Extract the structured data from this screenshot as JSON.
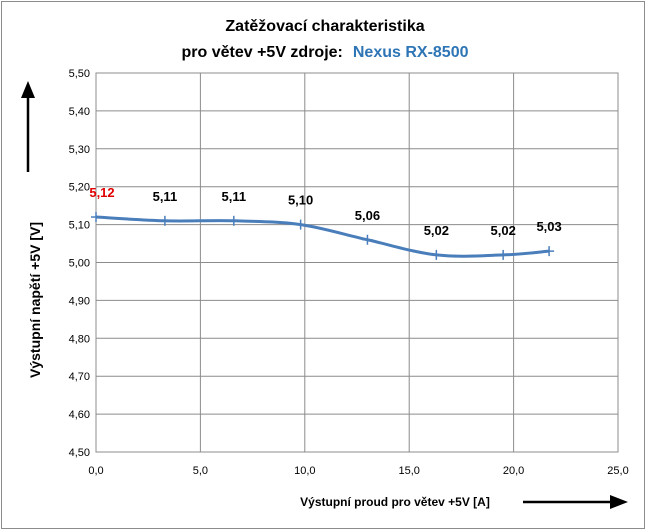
{
  "chart_data": {
    "type": "line",
    "title_line1": "Zatěžovací charakteristika",
    "title_line2_prefix": "pro větev +5V zdroje:",
    "title_line2_product": "Nexus RX-8500",
    "xlabel": "Výstupní proud  pro větev +5V [A]",
    "ylabel": "Výstupní napětí +5V  [V]",
    "xlim": [
      0,
      25
    ],
    "ylim": [
      4.5,
      5.5
    ],
    "x_ticks": [
      "0,0",
      "5,0",
      "10,0",
      "15,0",
      "20,0",
      "25,0"
    ],
    "y_ticks": [
      "4,50",
      "4,60",
      "4,70",
      "4,80",
      "4,90",
      "5,00",
      "5,10",
      "5,20",
      "5,30",
      "5,40",
      "5,50"
    ],
    "grid": true,
    "series": [
      {
        "x": [
          0.0,
          3.3,
          6.6,
          9.8,
          13.0,
          16.3,
          19.5,
          21.7
        ],
        "y": [
          5.12,
          5.11,
          5.11,
          5.1,
          5.06,
          5.02,
          5.02,
          5.03
        ],
        "labels": [
          "5,12",
          "5,11",
          "5,11",
          "5,10",
          "5,06",
          "5,02",
          "5,02",
          "5,03"
        ]
      }
    ],
    "colors": {
      "line": "#4a7ebb",
      "title": "#000000",
      "product": "#2e75b6",
      "first_label": "#e00000",
      "label": "#000000",
      "grid": "#8c8c8c"
    }
  }
}
